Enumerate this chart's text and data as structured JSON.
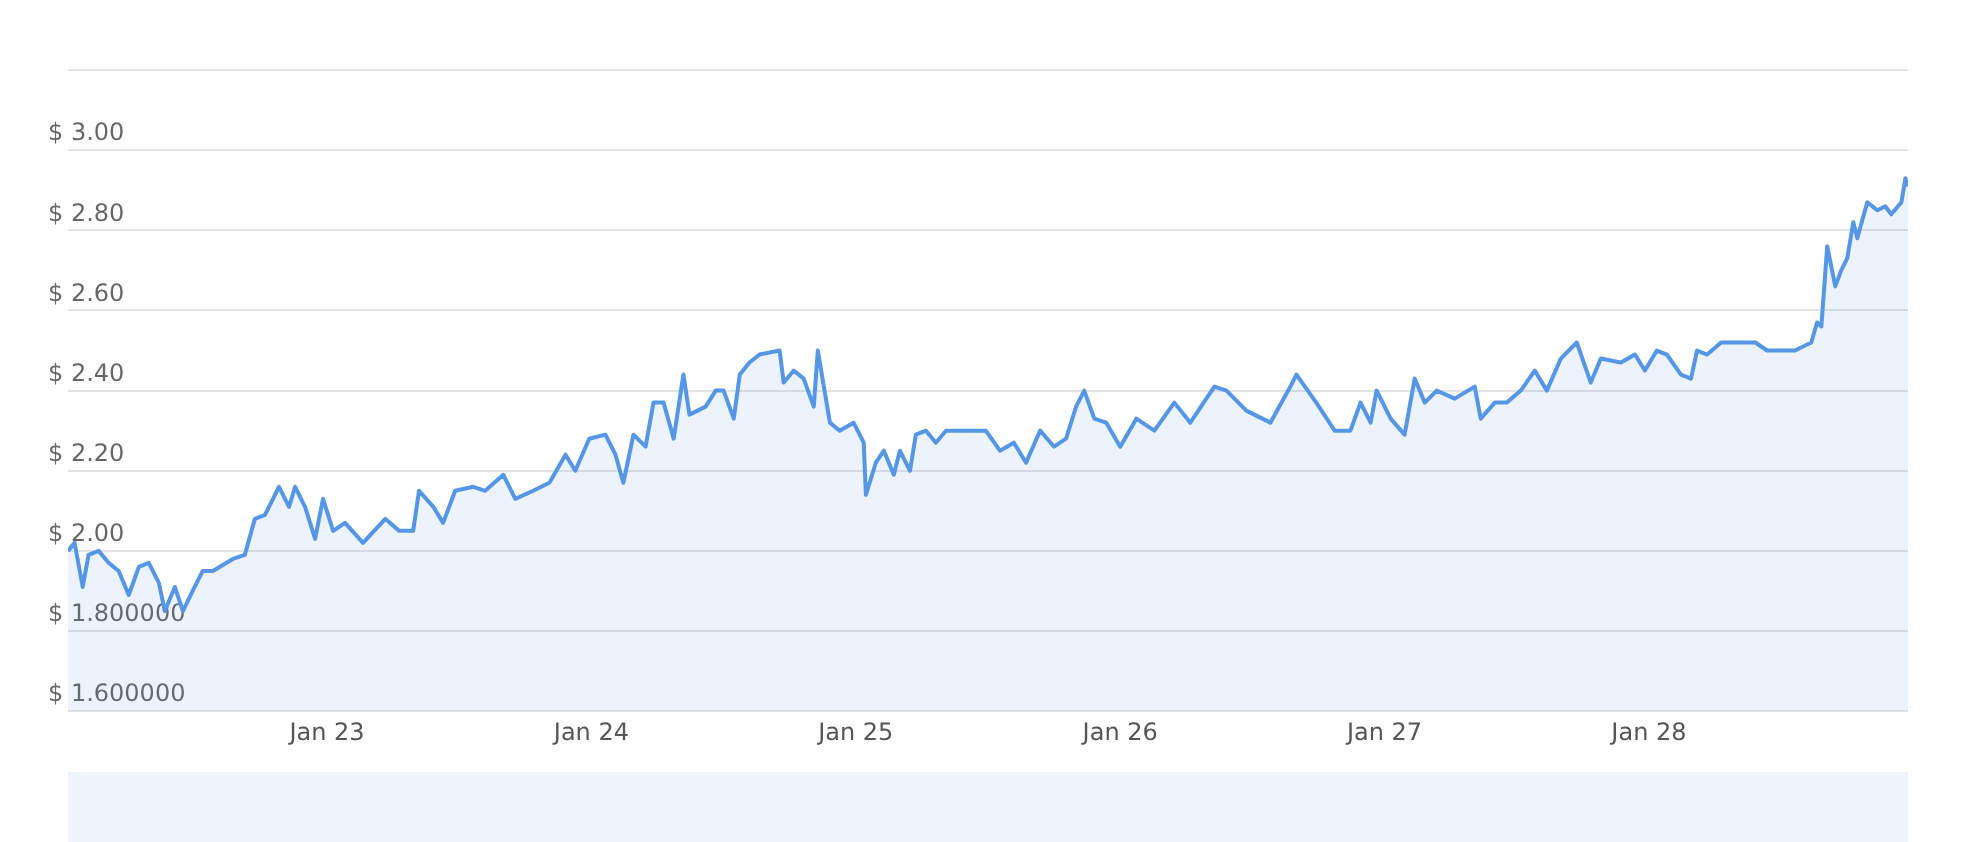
{
  "chart_data": {
    "type": "area",
    "xlim": [
      "--01-22T00:29",
      "--01-28T23:31"
    ],
    "xticks": [
      {
        "value": "--01-23",
        "label": "Jan 23"
      },
      {
        "value": "--01-24",
        "label": "Jan 24"
      },
      {
        "value": "--01-25",
        "label": "Jan 25"
      },
      {
        "value": "--01-26",
        "label": "Jan 26"
      },
      {
        "value": "--01-27",
        "label": "Jan 27"
      },
      {
        "value": "--01-28",
        "label": "Jan 28"
      }
    ],
    "ylim": [
      1.6,
      3.2
    ],
    "yticks": [
      {
        "value": 1.6,
        "label": "$ 1.600000"
      },
      {
        "value": 1.8,
        "label": "$ 1.800000"
      },
      {
        "value": 2.0,
        "label": "$ 2.00"
      },
      {
        "value": 2.2,
        "label": "$ 2.20"
      },
      {
        "value": 2.4,
        "label": "$ 2.40"
      },
      {
        "value": 2.6,
        "label": "$ 2.60"
      },
      {
        "value": 2.8,
        "label": "$ 2.80"
      },
      {
        "value": 3.0,
        "label": "$ 3.00"
      },
      {
        "value": 3.2,
        "label": null
      }
    ],
    "grid": "y",
    "legend": false,
    "marker": "none",
    "line_style": "solid",
    "series": [
      {
        "color": "#5596e6",
        "x": [
          "--01-22T00:29",
          "--01-22T01:05",
          "--01-22T01:49",
          "--01-22T02:21",
          "--01-22T03:16",
          "--01-22T04:11",
          "--01-22T05:05",
          "--01-22T06:00",
          "--01-22T06:55",
          "--01-22T07:49",
          "--01-22T08:44",
          "--01-22T09:16",
          "--01-22T10:11",
          "--01-22T10:55",
          "--01-22T11:48",
          "--01-22T12:43",
          "--01-22T13:38",
          "--01-22T15:27",
          "--01-22T16:32",
          "--01-22T17:27",
          "--01-22T18:22",
          "--01-22T19:38",
          "--01-22T20:33",
          "--01-22T21:06",
          "--01-22T22:00",
          "--01-22T22:55",
          "--01-22T23:38",
          "--01-23T00:33",
          "--01-23T01:38",
          "--01-23T03:16",
          "--01-23T05:17",
          "--01-23T06:33",
          "--01-23T07:49",
          "--01-23T08:21",
          "--01-23T09:39",
          "--01-23T10:32",
          "--01-23T11:38",
          "--01-23T13:16",
          "--01-23T14:21",
          "--01-23T16:00",
          "--01-23T17:05",
          "--01-23T18:43",
          "--01-23T20:11",
          "--01-23T21:39",
          "--01-23T22:32",
          "--01-23T23:48",
          "--01-24T01:16",
          "--01-24T02:11",
          "--01-24T02:54",
          "--01-24T03:49",
          "--01-24T04:55",
          "--01-24T05:38",
          "--01-24T06:33",
          "--01-24T07:28",
          "--01-24T08:21",
          "--01-24T08:54",
          "--01-24T10:22",
          "--01-24T11:17",
          "--01-24T12:00",
          "--01-24T12:55",
          "--01-24T13:28",
          "--01-24T14:21",
          "--01-24T15:16",
          "--01-24T17:05",
          "--01-24T17:27",
          "--01-24T18:22",
          "--01-24T19:16",
          "--01-24T20:11",
          "--01-24T20:33",
          "--01-24T21:39",
          "--01-24T22:32",
          "--01-24T23:48",
          "--01-25T00:43",
          "--01-25T00:55",
          "--01-25T01:49",
          "--01-25T02:33",
          "--01-25T03:27",
          "--01-25T04:00",
          "--01-25T04:55",
          "--01-25T05:27",
          "--01-25T06:22",
          "--01-25T07:16",
          "--01-25T08:11",
          "--01-25T10:00",
          "--01-25T11:48",
          "--01-25T13:05",
          "--01-25T14:21",
          "--01-25T15:27",
          "--01-25T16:44",
          "--01-25T18:00",
          "--01-25T19:05",
          "--01-25T20:00",
          "--01-25T20:44",
          "--01-25T21:39",
          "--01-25T22:44",
          "--01-26T00:00",
          "--01-26T01:28",
          "--01-26T03:06",
          "--01-26T04:55",
          "--01-26T06:22",
          "--01-26T08:33",
          "--01-26T09:39",
          "--01-26T11:27",
          "--01-26T13:38",
          "--01-26T15:27",
          "--01-26T16:00",
          "--01-26T17:48",
          "--01-26T19:28",
          "--01-26T20:54",
          "--01-26T21:49",
          "--01-26T22:44",
          "--01-26T23:17",
          "--01-27T00:33",
          "--01-27T01:49",
          "--01-27T02:44",
          "--01-27T03:39",
          "--01-27T04:44",
          "--01-27T06:22",
          "--01-27T08:11",
          "--01-27T08:44",
          "--01-27T10:00",
          "--01-27T11:05",
          "--01-27T12:22",
          "--01-27T13:38",
          "--01-27T14:44",
          "--01-27T16:00",
          "--01-27T17:27",
          "--01-27T18:43",
          "--01-27T19:38",
          "--01-27T21:27",
          "--01-27T22:44",
          "--01-27T23:38",
          "--01-28T00:43",
          "--01-28T01:38",
          "--01-28T02:54",
          "--01-28T03:49",
          "--01-28T04:22",
          "--01-28T05:17",
          "--01-28T06:33",
          "--01-28T08:21",
          "--01-28T09:39",
          "--01-28T10:44",
          "--01-28T12:00",
          "--01-28T13:16",
          "--01-28T14:44",
          "--01-28T15:16",
          "--01-28T15:39",
          "--01-28T16:11",
          "--01-28T16:55",
          "--01-28T17:27",
          "--01-28T18:00",
          "--01-28T18:33",
          "--01-28T18:55",
          "--01-28T19:49",
          "--01-28T20:44",
          "--01-28T21:27",
          "--01-28T22:00",
          "--01-28T22:55",
          "--01-28T23:17",
          "--01-28T23:31"
        ],
        "values": [
          2.0,
          2.02,
          1.91,
          1.99,
          2.0,
          1.97,
          1.95,
          1.89,
          1.96,
          1.97,
          1.92,
          1.85,
          1.91,
          1.85,
          1.9,
          1.95,
          1.95,
          1.98,
          1.99,
          2.08,
          2.09,
          2.16,
          2.11,
          2.16,
          2.11,
          2.03,
          2.13,
          2.05,
          2.07,
          2.02,
          2.08,
          2.05,
          2.05,
          2.15,
          2.11,
          2.07,
          2.15,
          2.16,
          2.15,
          2.19,
          2.13,
          2.15,
          2.17,
          2.24,
          2.2,
          2.28,
          2.29,
          2.24,
          2.17,
          2.29,
          2.26,
          2.37,
          2.37,
          2.28,
          2.44,
          2.34,
          2.36,
          2.4,
          2.4,
          2.33,
          2.44,
          2.47,
          2.49,
          2.5,
          2.42,
          2.45,
          2.43,
          2.36,
          2.5,
          2.32,
          2.3,
          2.32,
          2.27,
          2.14,
          2.22,
          2.25,
          2.19,
          2.25,
          2.2,
          2.29,
          2.3,
          2.27,
          2.3,
          2.3,
          2.3,
          2.25,
          2.27,
          2.22,
          2.3,
          2.26,
          2.28,
          2.36,
          2.4,
          2.33,
          2.32,
          2.26,
          2.33,
          2.3,
          2.37,
          2.32,
          2.41,
          2.4,
          2.35,
          2.32,
          2.41,
          2.44,
          2.37,
          2.3,
          2.3,
          2.37,
          2.32,
          2.4,
          2.33,
          2.29,
          2.43,
          2.37,
          2.4,
          2.38,
          2.41,
          2.33,
          2.37,
          2.37,
          2.4,
          2.45,
          2.4,
          2.48,
          2.52,
          2.42,
          2.48,
          2.47,
          2.49,
          2.45,
          2.5,
          2.49,
          2.44,
          2.43,
          2.5,
          2.49,
          2.52,
          2.52,
          2.52,
          2.5,
          2.5,
          2.5,
          2.52,
          2.57,
          2.56,
          2.76,
          2.66,
          2.7,
          2.73,
          2.82,
          2.78,
          2.87,
          2.85,
          2.86,
          2.84,
          2.87,
          2.93,
          2.91
        ]
      }
    ]
  }
}
